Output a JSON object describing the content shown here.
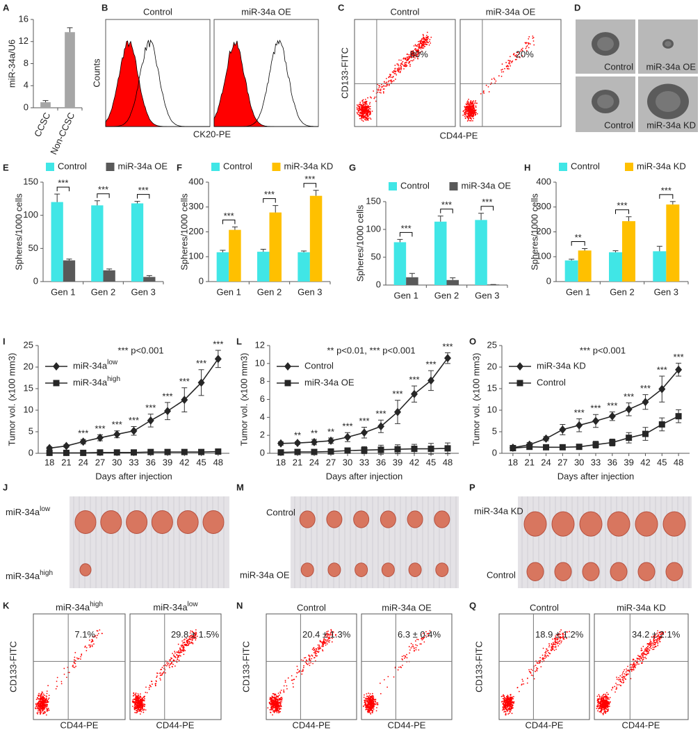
{
  "chart_data": [
    {
      "panel": "A",
      "type": "bar",
      "ylabel": "miR-34a/U6",
      "categories": [
        "CCSC",
        "Non-CCSC"
      ],
      "values": [
        1,
        13.7
      ],
      "errors": [
        0.3,
        0.8
      ],
      "color": "#a6a6a6",
      "ylim": [
        0,
        16
      ],
      "yticks": [
        0,
        4,
        8,
        12,
        16
      ]
    },
    {
      "panel": "B",
      "type": "cytometry",
      "titles": [
        "Control",
        "miR-34a OE"
      ],
      "ylabel": "Counts",
      "xlabel": "CK20-PE",
      "color": "#ff0000"
    },
    {
      "panel": "C",
      "type": "flow",
      "titles": [
        "Control",
        "miR-34a OE"
      ],
      "annotations": [
        "80%",
        "20%"
      ],
      "ylabel": "CD133-FITC",
      "xlabel": "CD44-PE",
      "color": "#ff0000"
    },
    {
      "panel": "D",
      "type": "photo",
      "labels": [
        "Control",
        "miR-34a OE",
        "Control",
        "miR-34a KD"
      ]
    },
    {
      "panel": "E",
      "type": "bar",
      "ylabel": "Spheres/1000 cells",
      "categories": [
        "Gen 1",
        "Gen 2",
        "Gen 3"
      ],
      "series": [
        {
          "name": "Control",
          "color": "#40e6e6",
          "values": [
            120,
            115,
            118
          ],
          "errors": [
            12,
            7,
            3
          ]
        },
        {
          "name": "miR-34a OE",
          "color": "#595959",
          "values": [
            32,
            17,
            7
          ],
          "errors": [
            2,
            2,
            2
          ]
        }
      ],
      "significance": [
        "***",
        "***",
        "***"
      ],
      "ylim": [
        0,
        150
      ],
      "yticks": [
        0,
        50,
        100,
        150
      ]
    },
    {
      "panel": "F",
      "type": "bar",
      "ylabel": "Spheres/1000 cells",
      "categories": [
        "Gen 1",
        "Gen 2",
        "Gen 3"
      ],
      "series": [
        {
          "name": "Control",
          "color": "#40e6e6",
          "values": [
            118,
            120,
            118
          ],
          "errors": [
            8,
            10,
            5
          ]
        },
        {
          "name": "miR-34a KD",
          "color": "#ffc000",
          "values": [
            208,
            278,
            345
          ],
          "errors": [
            12,
            28,
            22
          ]
        }
      ],
      "significance": [
        "***",
        "***",
        "***"
      ],
      "ylim": [
        0,
        400
      ],
      "yticks": [
        0,
        100,
        200,
        300,
        400
      ]
    },
    {
      "panel": "G",
      "type": "bar",
      "ylabel": "Spheres/1000 cells",
      "categories": [
        "Gen 1",
        "Gen 2",
        "Gen 3"
      ],
      "series": [
        {
          "name": "Control",
          "color": "#40e6e6",
          "values": [
            77,
            114,
            117
          ],
          "errors": [
            5,
            10,
            12
          ]
        },
        {
          "name": "miR-34a OE",
          "color": "#595959",
          "values": [
            14,
            9,
            1
          ],
          "errors": [
            7,
            4,
            0
          ]
        }
      ],
      "significance": [
        "***",
        "***",
        "***"
      ],
      "ylim": [
        0,
        150
      ],
      "yticks": [
        0,
        50,
        100,
        150
      ]
    },
    {
      "panel": "H",
      "type": "bar",
      "ylabel": "Spheres/1000 cells",
      "categories": [
        "Gen 1",
        "Gen 2",
        "Gen 3"
      ],
      "series": [
        {
          "name": "Control",
          "color": "#40e6e6",
          "values": [
            85,
            118,
            122
          ],
          "errors": [
            5,
            6,
            20
          ]
        },
        {
          "name": "miR-34a KD",
          "color": "#ffc000",
          "values": [
            125,
            243,
            310
          ],
          "errors": [
            8,
            18,
            12
          ]
        }
      ],
      "significance": [
        "**",
        "***",
        "***"
      ],
      "ylim": [
        0,
        400
      ],
      "yticks": [
        0,
        100,
        200,
        300,
        400
      ]
    },
    {
      "panel": "I",
      "type": "line",
      "annotation": "*** p<0.001",
      "ylabel": "Tumor vol. (x100 mm3)",
      "xlabel": "Days after injection",
      "x": [
        18,
        21,
        24,
        27,
        30,
        33,
        36,
        39,
        42,
        45,
        48
      ],
      "xlim": [
        16,
        50
      ],
      "xticks": [
        18,
        21,
        24,
        27,
        30,
        33,
        36,
        39,
        42,
        45,
        48
      ],
      "ylim": [
        0,
        25
      ],
      "yticks": [
        0,
        5,
        10,
        15,
        20,
        25
      ],
      "series": [
        {
          "name": "miR-34a",
          "name_sup": "low",
          "marker": "diamond",
          "color": "#262626",
          "values": [
            1.2,
            1.7,
            2.7,
            3.6,
            4.4,
            5.2,
            7.6,
            9.8,
            12.4,
            16.4,
            21.9
          ],
          "errors": [
            0.3,
            0.3,
            0.5,
            0.7,
            0.8,
            1.0,
            1.5,
            2.0,
            2.8,
            3.0,
            2.0
          ]
        },
        {
          "name": "miR-34a",
          "name_sup": "high",
          "marker": "square",
          "color": "#262626",
          "values": [
            0.1,
            0.1,
            0.1,
            0.2,
            0.2,
            0.2,
            0.3,
            0.3,
            0.3,
            0.3,
            0.4
          ],
          "errors": [
            0.2,
            0.2,
            0.2,
            0.2,
            0.2,
            0.2,
            0.2,
            0.2,
            0.2,
            0.2,
            0.2
          ]
        }
      ],
      "significance": [
        null,
        null,
        "***",
        "***",
        "***",
        "***",
        "***",
        "***",
        "***",
        "***",
        "***"
      ]
    },
    {
      "panel": "L",
      "type": "line",
      "annotation": "** p<0.01, *** p<0.001",
      "ylabel": "Tumor vol. (x100 mm3)",
      "xlabel": "Days after injection",
      "x": [
        18,
        21,
        24,
        27,
        30,
        33,
        36,
        39,
        42,
        45,
        48
      ],
      "xlim": [
        16,
        50
      ],
      "xticks": [
        18,
        21,
        24,
        27,
        30,
        33,
        36,
        39,
        42,
        45,
        48
      ],
      "ylim": [
        0,
        12
      ],
      "yticks": [
        0,
        2,
        4,
        6,
        8,
        10,
        12
      ],
      "series": [
        {
          "name": "Control",
          "marker": "diamond",
          "color": "#262626",
          "values": [
            1.1,
            1.15,
            1.25,
            1.4,
            1.8,
            2.3,
            3.0,
            4.6,
            6.6,
            8.1,
            10.6
          ],
          "errors": [
            0.2,
            0.15,
            0.3,
            0.3,
            0.5,
            0.6,
            0.7,
            1.3,
            0.9,
            1.1,
            0.6
          ]
        },
        {
          "name": "miR-34a OE",
          "marker": "square",
          "color": "#262626",
          "values": [
            0.1,
            0.15,
            0.15,
            0.2,
            0.3,
            0.35,
            0.4,
            0.45,
            0.5,
            0.5,
            0.55
          ],
          "errors": [
            0.05,
            0.1,
            0.1,
            0.2,
            0.3,
            0.4,
            0.5,
            0.5,
            0.5,
            0.6,
            0.6
          ]
        }
      ],
      "significance": [
        null,
        "**",
        "**",
        "**",
        "***",
        "***",
        "***",
        "***",
        "***",
        "***",
        "***"
      ]
    },
    {
      "panel": "O",
      "type": "line",
      "annotation": "*** p<0.001",
      "ylabel": "Tumor vol. (x100 mm3)",
      "xlabel": "Days after injection",
      "x": [
        18,
        21,
        24,
        27,
        30,
        33,
        36,
        39,
        42,
        45,
        48
      ],
      "xlim": [
        16,
        50
      ],
      "xticks": [
        18,
        21,
        24,
        27,
        30,
        33,
        36,
        39,
        42,
        45,
        48
      ],
      "ylim": [
        0,
        25
      ],
      "yticks": [
        0,
        5,
        10,
        15,
        20,
        25
      ],
      "series": [
        {
          "name": "miR-34a KD",
          "marker": "diamond",
          "color": "#262626",
          "values": [
            1.3,
            2.0,
            3.4,
            5.5,
            6.5,
            7.5,
            8.6,
            10.2,
            11.9,
            14.9,
            19.4
          ],
          "errors": [
            0.3,
            0.5,
            0.5,
            1.2,
            1.5,
            1.5,
            1.0,
            1.5,
            1.7,
            3.0,
            1.5
          ]
        },
        {
          "name": "Control",
          "marker": "square",
          "color": "#262626",
          "values": [
            1.2,
            1.5,
            1.4,
            1.4,
            1.5,
            2.0,
            2.5,
            3.6,
            4.5,
            6.7,
            8.6
          ],
          "errors": [
            0.2,
            0.6,
            0.4,
            0.4,
            0.5,
            0.8,
            0.8,
            1.2,
            1.5,
            1.5,
            1.5
          ]
        }
      ],
      "significance": [
        null,
        null,
        null,
        null,
        "***",
        "***",
        "***",
        "***",
        "***",
        "***",
        "***"
      ]
    },
    {
      "panel": "J",
      "type": "photo",
      "labels": [
        {
          "text": "miR-34a",
          "sup": "low"
        },
        {
          "text": "miR-34a",
          "sup": "high"
        }
      ]
    },
    {
      "panel": "M",
      "type": "photo",
      "labels": [
        "Control",
        "miR-34a OE"
      ]
    },
    {
      "panel": "P",
      "type": "photo",
      "labels": [
        "miR-34a KD",
        "Control"
      ]
    },
    {
      "panel": "K",
      "type": "flow",
      "titles": [
        {
          "text": "miR-34a",
          "sup": "high"
        },
        {
          "text": "miR-34a",
          "sup": "low"
        }
      ],
      "annotations": [
        "7.1%",
        "29.8 ± 1.5%"
      ],
      "ylabel": "CD133-FITC",
      "xlabel": "CD44-PE",
      "color": "#ff0000"
    },
    {
      "panel": "N",
      "type": "flow",
      "titles": [
        "Control",
        "miR-34a OE"
      ],
      "annotations": [
        "20.4 ± 1.3%",
        "6.3 ± 0.4%"
      ],
      "ylabel": "CD133-FITC",
      "xlabel": "CD44-PE",
      "color": "#ff0000"
    },
    {
      "panel": "Q",
      "type": "flow",
      "titles": [
        "Control",
        "miR-34a KD"
      ],
      "annotations": [
        "18.9 ± 1.2%",
        "34.2 ± 2.1%"
      ],
      "ylabel": "CD133-FITC",
      "xlabel": "CD44-PE",
      "color": "#ff0000"
    }
  ]
}
